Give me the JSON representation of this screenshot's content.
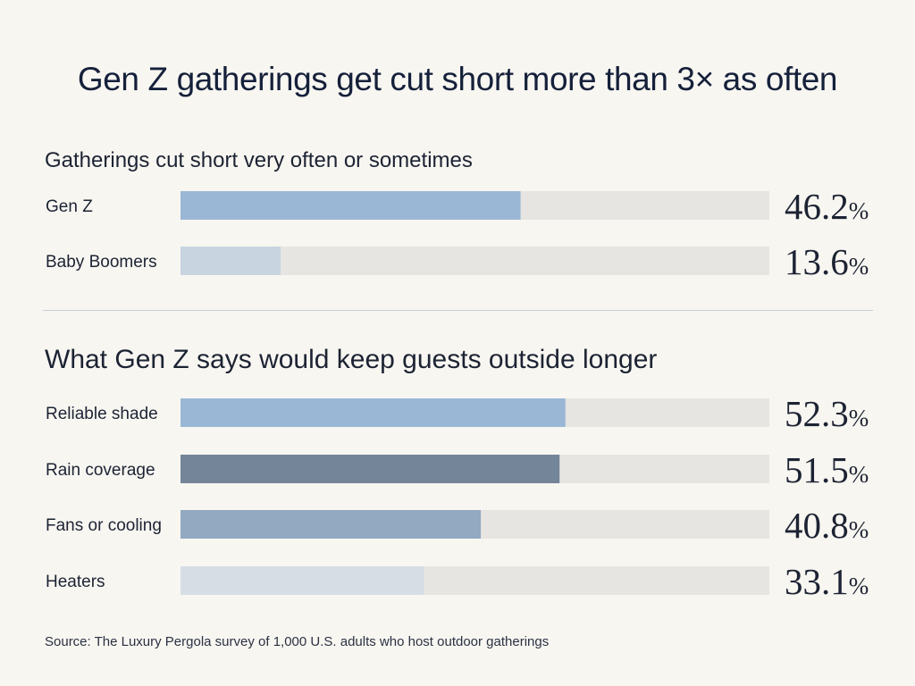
{
  "title": "Gen Z gatherings get cut short more than 3× as often",
  "source": "Source: The Luxury Pergola survey of 1,000 U.S. adults who host outdoor gatherings",
  "chart_data": [
    {
      "type": "bar",
      "orientation": "horizontal",
      "title": "Gatherings cut short very often or sometimes",
      "categories": [
        "Gen Z",
        "Baby Boomers"
      ],
      "values": [
        46.2,
        13.6
      ],
      "value_labels": [
        "46.2",
        "13.6"
      ],
      "unit": "%",
      "xlim": [
        0,
        80
      ],
      "bar_colors": [
        "#9ab8d6",
        "#c8d5e1"
      ],
      "track_color": "#e7e5e2"
    },
    {
      "type": "bar",
      "orientation": "horizontal",
      "title": "What Gen Z says would keep guests outside longer",
      "categories": [
        "Reliable shade",
        "Rain coverage",
        "Fans or cooling",
        "Heaters"
      ],
      "values": [
        52.3,
        51.5,
        40.8,
        33.1
      ],
      "value_labels": [
        "52.3",
        "51.5",
        "40.8",
        "33.1"
      ],
      "unit": "%",
      "xlim": [
        0,
        80
      ],
      "bar_colors": [
        "#9ab8d6",
        "#74859a",
        "#93a9c2",
        "#d6dde5"
      ],
      "track_color": "#e7e5e2"
    }
  ]
}
